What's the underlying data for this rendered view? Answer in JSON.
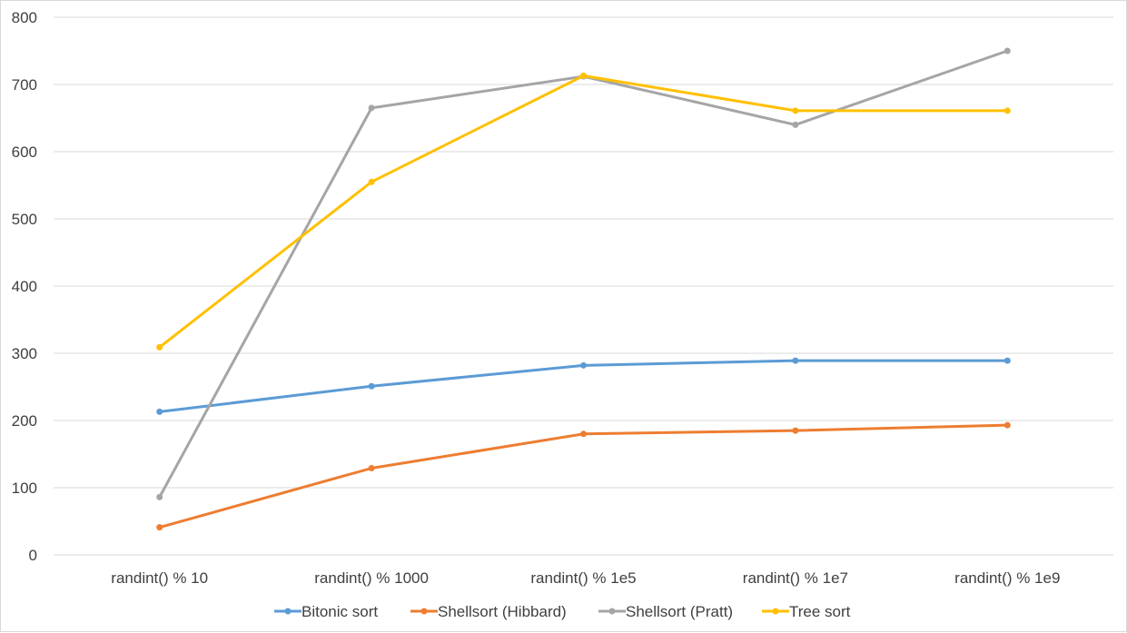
{
  "chart_data": {
    "type": "line",
    "title": "",
    "xlabel": "",
    "ylabel": "",
    "categories": [
      "randint() % 10",
      "randint() % 1000",
      "randint() % 1e5",
      "randint() % 1e7",
      "randint() % 1e9"
    ],
    "ylim": [
      0,
      800
    ],
    "yticks": [
      0,
      100,
      200,
      300,
      400,
      500,
      600,
      700,
      800
    ],
    "grid": "horizontal",
    "legend_position": "bottom",
    "series": [
      {
        "name": "Bitonic sort",
        "color": "#5b9bd5",
        "values": [
          213,
          251,
          282,
          289,
          289
        ]
      },
      {
        "name": "Shellsort (Hibbard)",
        "color": "#ed7d31",
        "values": [
          41,
          129,
          180,
          185,
          193
        ]
      },
      {
        "name": "Shellsort (Pratt)",
        "color": "#a5a5a5",
        "values": [
          86,
          665,
          712,
          640,
          750
        ]
      },
      {
        "name": "Tree sort",
        "color": "#ffc000",
        "values": [
          309,
          555,
          713,
          661,
          661
        ]
      }
    ]
  }
}
